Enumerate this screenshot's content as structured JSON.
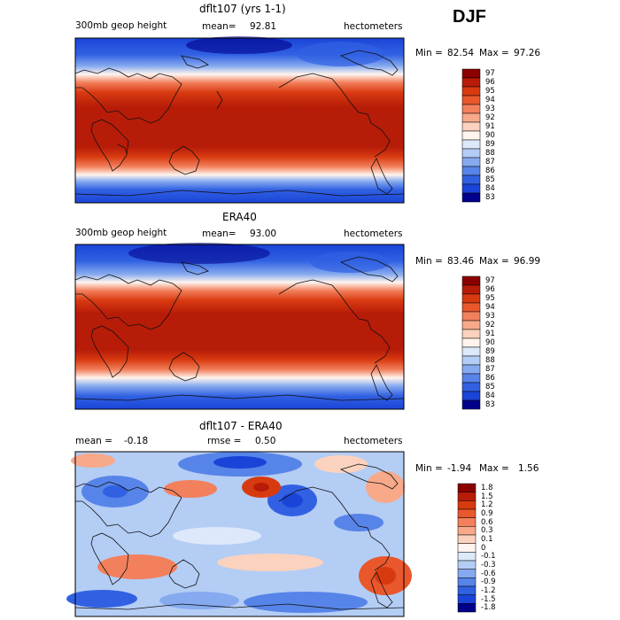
{
  "season": "DJF",
  "chart_data": [
    {
      "type": "heatmap",
      "title": "dflt107 (yrs 1-1)",
      "left_label": "300mb geop height",
      "stat_label": "mean=",
      "stat_value": "92.81",
      "units": "hectometers",
      "min_label": "Min =",
      "min_value": "82.54",
      "max_label": "Max =",
      "max_value": "97.26",
      "colorbar_levels": [
        "97",
        "96",
        "95",
        "94",
        "93",
        "92",
        "91",
        "90",
        "89",
        "88",
        "87",
        "86",
        "85",
        "84",
        "83"
      ],
      "colors": [
        "#8b0000",
        "#b71c08",
        "#d83a10",
        "#e9572c",
        "#f2805c",
        "#f7a98a",
        "#fbd2be",
        "#fff4ee",
        "#dde9fb",
        "#b4cdf5",
        "#86aaef",
        "#5784e8",
        "#3161e2",
        "#1a44d8",
        "#00008b"
      ]
    },
    {
      "type": "heatmap",
      "title": "ERA40",
      "left_label": "300mb geop height",
      "stat_label": "mean=",
      "stat_value": "93.00",
      "units": "hectometers",
      "min_label": "Min =",
      "min_value": "83.46",
      "max_label": "Max =",
      "max_value": "96.99",
      "colorbar_levels": [
        "97",
        "96",
        "95",
        "94",
        "93",
        "92",
        "91",
        "90",
        "89",
        "88",
        "87",
        "86",
        "85",
        "84",
        "83"
      ],
      "colors": [
        "#8b0000",
        "#b71c08",
        "#d83a10",
        "#e9572c",
        "#f2805c",
        "#f7a98a",
        "#fbd2be",
        "#fff4ee",
        "#dde9fb",
        "#b4cdf5",
        "#86aaef",
        "#5784e8",
        "#3161e2",
        "#1a44d8",
        "#00008b"
      ]
    },
    {
      "type": "heatmap",
      "title": "dflt107 - ERA40",
      "left_label": "mean =",
      "left_value": "-0.18",
      "stat_label": "rmse =",
      "stat_value": "0.50",
      "units": "hectometers",
      "min_label": "Min =",
      "min_value": "-1.94",
      "max_label": "Max =",
      "max_value": "1.56",
      "colorbar_levels": [
        "1.8",
        "1.5",
        "1.2",
        "0.9",
        "0.6",
        "0.3",
        "0.1",
        "0",
        "-0.1",
        "-0.3",
        "-0.6",
        "-0.9",
        "-1.2",
        "-1.5",
        "-1.8"
      ],
      "colors": [
        "#8b0000",
        "#b71c08",
        "#d83a10",
        "#e9572c",
        "#f2805c",
        "#f7a98a",
        "#fbd2be",
        "#fff4ee",
        "#dde9fb",
        "#b4cdf5",
        "#86aaef",
        "#5784e8",
        "#3161e2",
        "#1a44d8",
        "#00008b"
      ]
    }
  ]
}
